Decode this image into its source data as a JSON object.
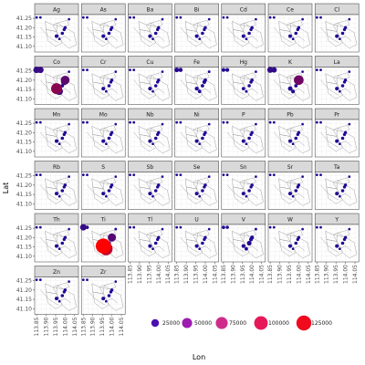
{
  "chart_data": {
    "type": "scatter",
    "facet_by": "element",
    "xlabel": "Lon",
    "ylabel": "Lat",
    "x_ticks": [
      "113.85",
      "113.90",
      "113.95",
      "114.00",
      "114.05"
    ],
    "y_ticks": [
      "41.25",
      "41.20",
      "41.15",
      "41.10"
    ],
    "xlim": [
      113.84,
      114.07
    ],
    "ylim": [
      41.07,
      41.27
    ],
    "facets": [
      "Ag",
      "As",
      "Ba",
      "Bi",
      "Cd",
      "Ce",
      "Cl",
      "Co",
      "Cr",
      "Cu",
      "Fe",
      "Hg",
      "K",
      "La",
      "Mn",
      "Mo",
      "Nb",
      "Ni",
      "P",
      "Pb",
      "Pr",
      "Rb",
      "S",
      "Sb",
      "Se",
      "Sn",
      "Sr",
      "Ta",
      "Th",
      "Ti",
      "Tl",
      "U",
      "V",
      "W",
      "Y",
      "Zn",
      "Zr"
    ],
    "points": [
      {
        "lon": 113.85,
        "lat": 41.255
      },
      {
        "lon": 113.87,
        "lat": 41.255
      },
      {
        "lon": 113.985,
        "lat": 41.17
      },
      {
        "lon": 113.995,
        "lat": 41.19
      },
      {
        "lon": 114.0,
        "lat": 41.2
      },
      {
        "lon": 114.02,
        "lat": 41.245
      },
      {
        "lon": 113.955,
        "lat": 41.155
      },
      {
        "lon": 113.97,
        "lat": 41.14
      }
    ],
    "values": {
      "default": [
        400,
        400,
        1500,
        1200,
        1200,
        300,
        2500,
        300
      ],
      "Co": [
        15000,
        15000,
        2000,
        15000,
        35000,
        300,
        60000,
        20000
      ],
      "Fe": [
        6000,
        4000,
        2000,
        3000,
        2000,
        500,
        3000,
        2000
      ],
      "Hg": [
        3000,
        3000,
        1500,
        1500,
        1500,
        300,
        2000,
        500
      ],
      "K": [
        12000,
        10000,
        2000,
        3000,
        45000,
        300,
        5000,
        3000
      ],
      "Ti": [
        15000,
        2000,
        3000,
        3000,
        30000,
        500,
        125000,
        90000
      ],
      "V": [
        2000,
        1500,
        6000,
        3000,
        3000,
        500,
        3000,
        2000
      ]
    },
    "size_legend": {
      "breaks": [
        25000,
        50000,
        75000,
        100000,
        125000
      ],
      "labels": [
        "25000",
        "50000",
        "75000",
        "100000",
        "125000"
      ],
      "colors": [
        "#4b0fb0",
        "#9c1bb0",
        "#cf2b8a",
        "#e6185a",
        "#f00a1e"
      ]
    },
    "color_low": "#1d0b97",
    "color_high": "#ff0000",
    "strip_fill": "#d9d9d9",
    "grid": true,
    "legend_position": "bottom-right"
  }
}
